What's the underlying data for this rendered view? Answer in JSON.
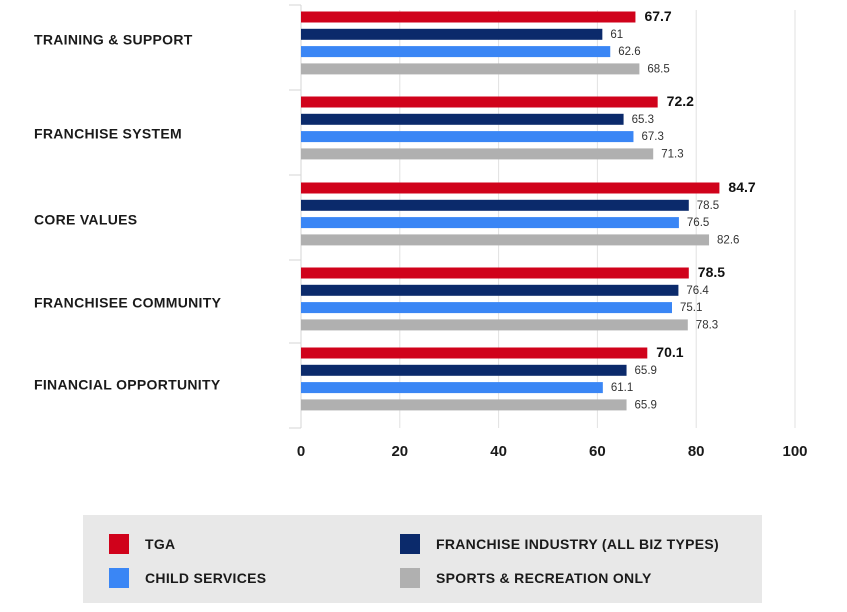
{
  "chart_data": {
    "type": "bar",
    "orientation": "horizontal",
    "categories": [
      "TRAINING & SUPPORT",
      "FRANCHISE SYSTEM",
      "CORE VALUES",
      "FRANCHISEE COMMUNITY",
      "FINANCIAL OPPORTUNITY"
    ],
    "series": [
      {
        "name": "TGA",
        "color": "#d0021b",
        "values": [
          67.7,
          72.2,
          84.7,
          78.5,
          70.1
        ],
        "labels": [
          "67.7",
          "72.2",
          "84.7",
          "78.5",
          "70.1"
        ]
      },
      {
        "name": "FRANCHISE INDUSTRY (ALL BIZ TYPES)",
        "color": "#0b2a6b",
        "values": [
          61,
          65.3,
          78.5,
          76.4,
          65.9
        ],
        "labels": [
          "61",
          "65.3",
          "78.5",
          "76.4",
          "65.9"
        ]
      },
      {
        "name": "CHILD SERVICES",
        "color": "#3a86f5",
        "values": [
          62.6,
          67.3,
          76.5,
          75.1,
          61.1
        ],
        "labels": [
          "62.6",
          "67.3",
          "76.5",
          "75.1",
          "61.1"
        ]
      },
      {
        "name": "SPORTS & RECREATION ONLY",
        "color": "#b0b0b0",
        "values": [
          68.5,
          71.3,
          82.6,
          78.3,
          65.9
        ],
        "labels": [
          "68.5",
          "71.3",
          "82.6",
          "78.3",
          "65.9"
        ]
      }
    ],
    "xlim": [
      0,
      100
    ],
    "xticks": [
      "0",
      "20",
      "40",
      "60",
      "80",
      "100"
    ],
    "grid": true,
    "legend_position": "bottom"
  }
}
